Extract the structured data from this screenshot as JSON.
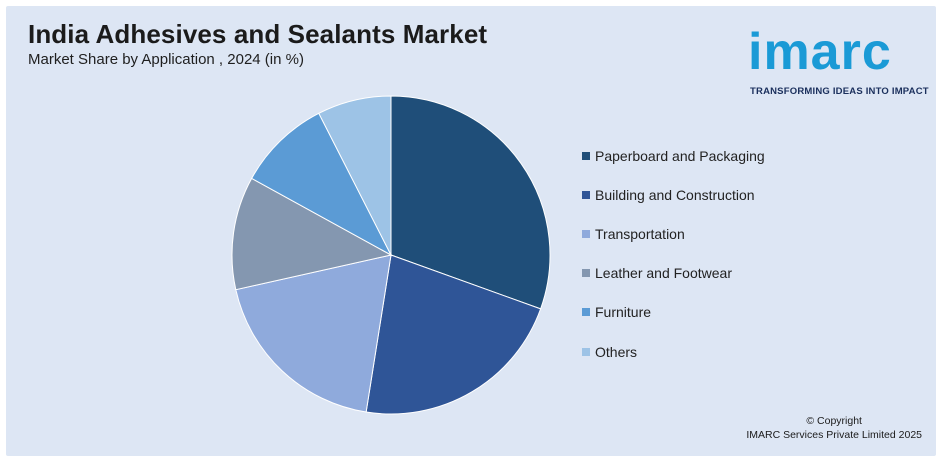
{
  "header": {
    "title": "India Adhesives and Sealants Market",
    "subtitle": "Market Share by Application , 2024 (in %)"
  },
  "logo": {
    "word": "imarc",
    "tagline": "TRANSFORMING IDEAS INTO IMPACT",
    "color": "#1a9ad6"
  },
  "footer": {
    "copyright_line1": "© Copyright",
    "copyright_line2": "IMARC Services Private Limited 2025"
  },
  "colors": {
    "background": "#dde6f4"
  },
  "chart_data": {
    "type": "pie",
    "title": "India Adhesives and Sealants Market",
    "subtitle": "Market Share by Application , 2024 (in %)",
    "start_angle_deg": 0,
    "direction": "clockwise",
    "legend_position": "right",
    "categories": [
      "Paperboard and Packaging",
      "Building and Construction",
      "Transportation",
      "Leather and Footwear",
      "Furniture",
      "Others"
    ],
    "values": [
      30.5,
      22,
      19,
      11.5,
      9.5,
      7.5
    ],
    "colors": [
      "#1f4e79",
      "#2f5597",
      "#8faadc",
      "#8497b0",
      "#5b9bd5",
      "#9dc3e6"
    ]
  }
}
